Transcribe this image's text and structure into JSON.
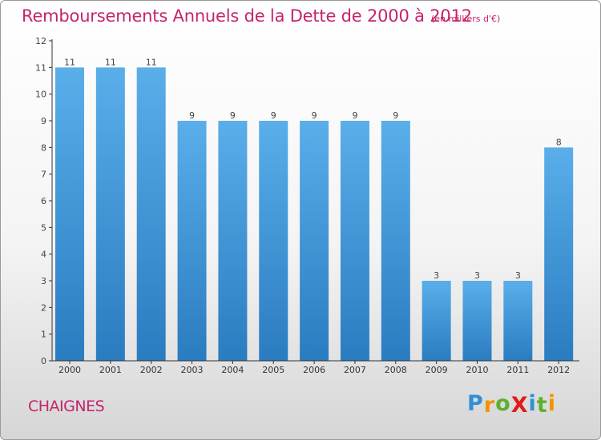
{
  "title": "Remboursements Annuels de la Dette de 2000 à 2012",
  "subtitle": "(en milliers d'€)",
  "commune": "CHAIGNES",
  "logo": {
    "text": "ProXiti",
    "letters": [
      "P",
      "r",
      "o",
      "X",
      "i",
      "t",
      "i"
    ],
    "colors": [
      "#2f8fd8",
      "#f29400",
      "#5cb030",
      "#e21a1a",
      "#2f8fd8",
      "#5cb030",
      "#f29400"
    ]
  },
  "colors": {
    "bar_light": "#5aaeea",
    "bar_dark": "#2a7cc0",
    "axis": "#333333",
    "label": "#444444"
  },
  "chart_data": {
    "type": "bar",
    "categories": [
      "2000",
      "2001",
      "2002",
      "2003",
      "2004",
      "2005",
      "2006",
      "2007",
      "2008",
      "2009",
      "2010",
      "2011",
      "2012"
    ],
    "values": [
      11,
      11,
      11,
      9,
      9,
      9,
      9,
      9,
      9,
      3,
      3,
      3,
      8
    ],
    "data_labels": [
      "11",
      "11",
      "11",
      "9",
      "9",
      "9",
      "9",
      "9",
      "9",
      "3",
      "3",
      "3",
      "8"
    ],
    "ylim": [
      0,
      12
    ],
    "yticks": [
      0,
      1,
      2,
      3,
      4,
      5,
      6,
      7,
      8,
      9,
      10,
      11,
      12
    ],
    "title": "Remboursements Annuels de la Dette de 2000 à 2012",
    "unit": "(en milliers d'€)",
    "xlabel": "",
    "ylabel": ""
  }
}
